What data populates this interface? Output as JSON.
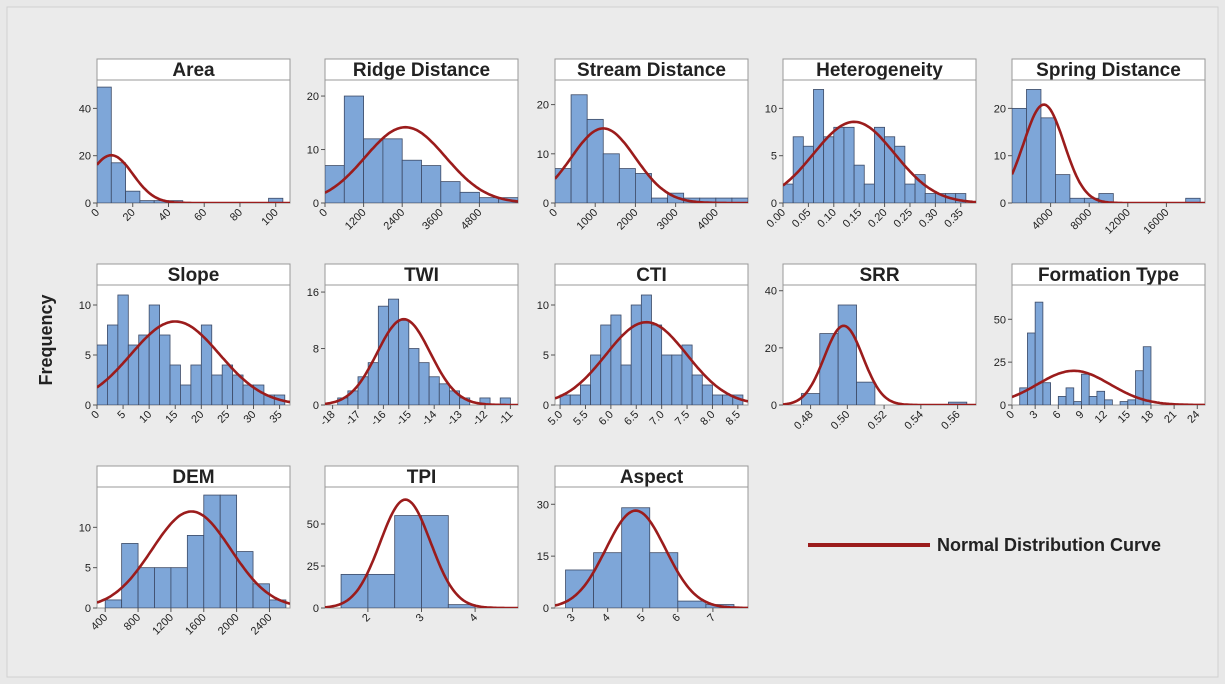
{
  "y_label": "Frequency",
  "legend": {
    "label": "Normal Distribution Curve",
    "color": "#9b1c1c"
  },
  "chart_data": [
    {
      "type": "histogram",
      "title": "Area",
      "bins": [
        0,
        8,
        16,
        24,
        32,
        40,
        48,
        56,
        64,
        72,
        80,
        88,
        96,
        104
      ],
      "counts": [
        49,
        17,
        5,
        1,
        1,
        1,
        0,
        0,
        0,
        0,
        0,
        0,
        2
      ],
      "xlim": [
        0,
        108
      ],
      "xticks": [
        0,
        20,
        40,
        60,
        80,
        100
      ],
      "ylim": [
        0,
        52
      ],
      "yticks": [
        0,
        20,
        40
      ],
      "color": "#7ea6d8",
      "fit": {
        "mean": 8,
        "sd": 12
      }
    },
    {
      "type": "histogram",
      "title": "Ridge Distance",
      "bins": [
        0,
        600,
        1200,
        1800,
        2400,
        3000,
        3600,
        4200,
        4800,
        5400,
        6000
      ],
      "counts": [
        7,
        20,
        12,
        12,
        8,
        7,
        4,
        2,
        1,
        1
      ],
      "xlim": [
        0,
        6000
      ],
      "xticks": [
        0,
        1200,
        2400,
        3600,
        4800
      ],
      "ylim": [
        0,
        23
      ],
      "yticks": [
        0,
        10,
        20
      ],
      "color": "#7ea6d8",
      "fit": {
        "mean": 2500,
        "sd": 1250
      }
    },
    {
      "type": "histogram",
      "title": "Stream Distance",
      "bins": [
        0,
        400,
        800,
        1200,
        1600,
        2000,
        2400,
        2800,
        3200,
        3600,
        4000,
        4400,
        4800
      ],
      "counts": [
        7,
        22,
        17,
        10,
        7,
        6,
        1,
        2,
        1,
        1,
        1,
        1
      ],
      "xlim": [
        0,
        4800
      ],
      "xticks": [
        0,
        1000,
        2000,
        3000,
        4000
      ],
      "ylim": [
        0,
        25
      ],
      "yticks": [
        0,
        10,
        20
      ],
      "color": "#7ea6d8",
      "fit": {
        "mean": 1200,
        "sd": 800
      }
    },
    {
      "type": "histogram",
      "title": "Heterogeneity",
      "bins": [
        0,
        0.02,
        0.04,
        0.06,
        0.08,
        0.1,
        0.12,
        0.14,
        0.16,
        0.18,
        0.2,
        0.22,
        0.24,
        0.26,
        0.28,
        0.3,
        0.32,
        0.34,
        0.36,
        0.38
      ],
      "counts": [
        2,
        7,
        6,
        12,
        7,
        8,
        8,
        4,
        2,
        8,
        7,
        6,
        2,
        3,
        1,
        1,
        1,
        1,
        0
      ],
      "xlim": [
        0,
        0.38
      ],
      "xticks": [
        {
          "value": 0,
          "label": "0.00"
        },
        {
          "value": 0.05,
          "label": "0.05"
        },
        {
          "value": 0.1,
          "label": "0.10"
        },
        {
          "value": 0.15,
          "label": "0.15"
        },
        {
          "value": 0.2,
          "label": "0.20"
        },
        {
          "value": 0.25,
          "label": "0.25"
        },
        {
          "value": 0.3,
          "label": "0.30"
        },
        {
          "value": 0.35,
          "label": "0.35"
        }
      ],
      "ylim": [
        0,
        13
      ],
      "yticks": [
        0,
        5,
        10
      ],
      "color": "#7ea6d8",
      "fit": {
        "mean": 0.14,
        "sd": 0.08
      }
    },
    {
      "type": "histogram",
      "title": "Spring Distance",
      "bins": [
        0,
        1500,
        3000,
        4500,
        6000,
        7500,
        9000,
        10500,
        12000,
        13500,
        15000,
        16500,
        18000,
        19500
      ],
      "counts": [
        20,
        24,
        18,
        6,
        1,
        1,
        2,
        0,
        0,
        0,
        0,
        0,
        1
      ],
      "xlim": [
        0,
        20000
      ],
      "xticks": [
        4000,
        8000,
        12000,
        16000
      ],
      "ylim": [
        0,
        26
      ],
      "yticks": [
        0,
        10,
        20
      ],
      "color": "#7ea6d8",
      "fit": {
        "mean": 3300,
        "sd": 2100
      }
    },
    {
      "type": "histogram",
      "title": "Slope",
      "bins": [
        0,
        2,
        4,
        6,
        8,
        10,
        12,
        14,
        16,
        18,
        20,
        22,
        24,
        26,
        28,
        30,
        32,
        34,
        36
      ],
      "counts": [
        6,
        8,
        11,
        6,
        7,
        10,
        7,
        4,
        2,
        4,
        8,
        3,
        4,
        3,
        2,
        2,
        1,
        1
      ],
      "xlim": [
        0,
        37
      ],
      "xticks": [
        0,
        5,
        10,
        15,
        20,
        25,
        30,
        35
      ],
      "ylim": [
        0,
        12
      ],
      "yticks": [
        0,
        5,
        10
      ],
      "color": "#7ea6d8",
      "fit": {
        "mean": 15,
        "sd": 8.5
      }
    },
    {
      "type": "histogram",
      "title": "TWI",
      "bins": [
        -17.8,
        -17.4,
        -17,
        -16.6,
        -16.2,
        -15.8,
        -15.4,
        -15,
        -14.6,
        -14.2,
        -13.8,
        -13.4,
        -13,
        -12.6,
        -12.2,
        -11.8,
        -11.4,
        -11
      ],
      "counts": [
        1,
        2,
        4,
        6,
        14,
        15,
        12,
        8,
        6,
        4,
        3,
        2,
        1,
        0,
        1,
        0,
        1
      ],
      "xlim": [
        -18.3,
        -10.7
      ],
      "xticks": [
        -18,
        -17,
        -16,
        -15,
        -14,
        -13,
        -12,
        -11
      ],
      "ylim": [
        0,
        17
      ],
      "yticks": [
        0,
        8,
        16
      ],
      "color": "#7ea6d8",
      "fit": {
        "mean": -15.2,
        "sd": 1.05
      }
    },
    {
      "type": "histogram",
      "title": "CTI",
      "bins": [
        5,
        5.2,
        5.4,
        5.6,
        5.8,
        6,
        6.2,
        6.4,
        6.6,
        6.8,
        7,
        7.2,
        7.4,
        7.6,
        7.8,
        8,
        8.2,
        8.4,
        8.6
      ],
      "counts": [
        1,
        1,
        2,
        5,
        8,
        9,
        4,
        10,
        11,
        8,
        5,
        5,
        6,
        3,
        2,
        1,
        1,
        1
      ],
      "xlim": [
        4.9,
        8.7
      ],
      "xticks": [
        {
          "value": 5,
          "label": "5.0"
        },
        5.5,
        {
          "value": 6,
          "label": "6.0"
        },
        6.5,
        {
          "value": 7,
          "label": "7.0"
        },
        7.5,
        {
          "value": 8,
          "label": "8.0"
        },
        8.5
      ],
      "ylim": [
        0,
        12
      ],
      "yticks": [
        0,
        5,
        10
      ],
      "color": "#7ea6d8",
      "fit": {
        "mean": 6.7,
        "sd": 0.8
      }
    },
    {
      "type": "histogram",
      "title": "SRR",
      "bins": [
        0.475,
        0.485,
        0.495,
        0.505,
        0.515,
        0.525,
        0.535,
        0.545,
        0.555,
        0.565
      ],
      "counts": [
        4,
        25,
        35,
        8,
        0,
        0,
        0,
        0,
        1
      ],
      "xlim": [
        0.465,
        0.57
      ],
      "xticks": [
        0.48,
        {
          "value": 0.5,
          "label": "0.50"
        },
        0.52,
        0.54,
        0.56
      ],
      "ylim": [
        0,
        42
      ],
      "yticks": [
        0,
        20,
        40
      ],
      "color": "#7ea6d8",
      "fit": {
        "mean": 0.498,
        "sd": 0.0105
      }
    },
    {
      "type": "histogram",
      "title": "Formation Type",
      "bins": [
        1,
        2,
        3,
        4,
        5,
        6,
        7,
        8,
        9,
        10,
        11,
        12,
        13,
        14,
        15,
        16,
        17,
        18
      ],
      "counts": [
        10,
        42,
        60,
        13,
        0,
        5,
        10,
        2,
        18,
        5,
        8,
        3,
        0,
        2,
        3,
        20,
        34
      ],
      "xlim": [
        0,
        25
      ],
      "xticks": [
        0,
        3,
        6,
        9,
        12,
        15,
        18,
        21,
        24
      ],
      "ylim": [
        0,
        70
      ],
      "yticks": [
        0,
        25,
        50
      ],
      "color": "#7ea6d8",
      "fit": {
        "mean": 8,
        "sd": 4.7
      }
    },
    {
      "type": "histogram",
      "title": "DEM",
      "bins": [
        400,
        600,
        800,
        1000,
        1200,
        1400,
        1600,
        1800,
        2000,
        2200,
        2400,
        2600
      ],
      "counts": [
        1,
        8,
        5,
        5,
        5,
        9,
        14,
        14,
        7,
        3,
        1
      ],
      "xlim": [
        300,
        2650
      ],
      "xticks": [
        400,
        800,
        1200,
        1600,
        2000,
        2400
      ],
      "ylim": [
        0,
        15
      ],
      "yticks": [
        0,
        5,
        10
      ],
      "color": "#7ea6d8",
      "fit": {
        "mean": 1450,
        "sd": 480
      }
    },
    {
      "type": "histogram",
      "title": "TPI",
      "bins": [
        1.5,
        2,
        2.5,
        3,
        3.5,
        4
      ],
      "counts": [
        20,
        20,
        55,
        55,
        2
      ],
      "xlim": [
        1.2,
        4.8
      ],
      "xticks": [
        2,
        3,
        4
      ],
      "ylim": [
        0,
        72
      ],
      "yticks": [
        0,
        25,
        50
      ],
      "color": "#7ea6d8",
      "fit": {
        "mean": 2.7,
        "sd": 0.47
      }
    },
    {
      "type": "histogram",
      "title": "Aspect",
      "bins": [
        2.8,
        3.6,
        4.4,
        5.2,
        6,
        6.8,
        7.6
      ],
      "counts": [
        11,
        16,
        29,
        16,
        2,
        1
      ],
      "xlim": [
        2.5,
        8
      ],
      "xticks": [
        3,
        4,
        5,
        6,
        7
      ],
      "ylim": [
        0,
        35
      ],
      "yticks": [
        0,
        15,
        30
      ],
      "color": "#7ea6d8",
      "fit": {
        "mean": 4.8,
        "sd": 0.85
      }
    }
  ]
}
